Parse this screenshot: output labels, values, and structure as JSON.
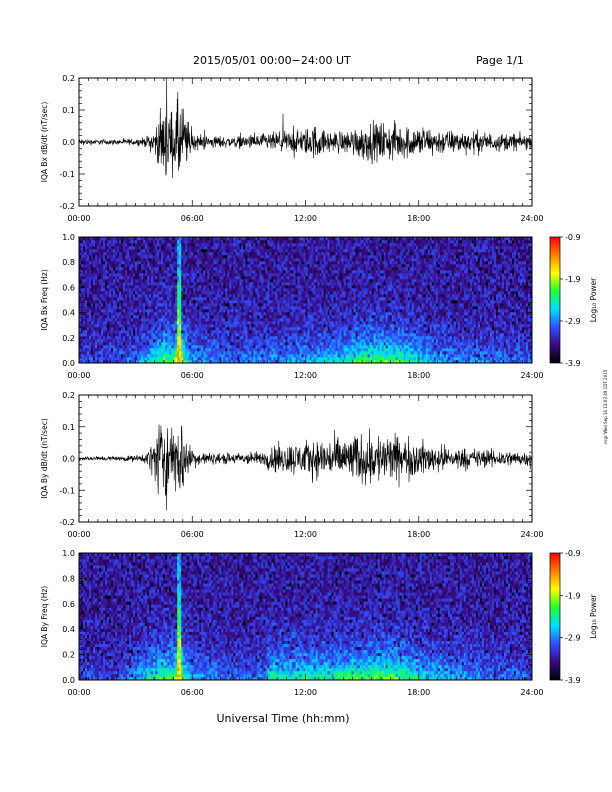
{
  "header": {
    "date_range": "2015/05/01   00:00−24:00 UT",
    "page": "Page 1/1"
  },
  "footer": {
    "xlabel": "Universal Time (hh:mm)",
    "stamp": "ncgr Wed Sep 16 13:03:49 CDT 2015"
  },
  "colorbar": {
    "label": "Log₁₀ Power",
    "ticks": [
      "-0.9",
      "-1.9",
      "-2.9",
      "-3.9"
    ],
    "range": [
      -3.9,
      -0.9
    ],
    "colors": [
      "#000000",
      "#3a0a80",
      "#3050ff",
      "#00e0ff",
      "#20ff30",
      "#ffff00",
      "#ff8000",
      "#ff0000"
    ]
  },
  "colors": {
    "trace": "#000000",
    "spectrogram_background": "#20105a"
  },
  "chart_data": [
    {
      "type": "line",
      "ylabel": "IQA Bx dB/dt (nT/sec)",
      "xlim": [
        0,
        24
      ],
      "ylim": [
        -0.2,
        0.2
      ],
      "x_ticks": [
        "00:00",
        "06:00",
        "12:00",
        "18:00",
        "24:00"
      ],
      "y_ticks": [
        "-0.2",
        "-0.1",
        "0.0",
        "0.1",
        "0.2"
      ],
      "envelope": {
        "x_hours": [
          0,
          1,
          2,
          3,
          3.5,
          4,
          4.3,
          4.6,
          5,
          5.2,
          5.4,
          5.7,
          6,
          7,
          8,
          9,
          10,
          11,
          12,
          12.5,
          13,
          14,
          15,
          16,
          17,
          18,
          19,
          20,
          21,
          22,
          23,
          24
        ],
        "amplitude": [
          0.015,
          0.012,
          0.012,
          0.015,
          0.02,
          0.06,
          0.12,
          0.18,
          0.13,
          0.2,
          0.2,
          0.12,
          0.04,
          0.03,
          0.025,
          0.03,
          0.04,
          0.05,
          0.06,
          0.08,
          0.05,
          0.05,
          0.08,
          0.09,
          0.08,
          0.07,
          0.06,
          0.05,
          0.05,
          0.04,
          0.04,
          0.03
        ]
      }
    },
    {
      "type": "heatmap",
      "ylabel": "IQA Bx Freq (Hz)",
      "xlim": [
        0,
        24
      ],
      "ylim": [
        0,
        1
      ],
      "x_ticks": [
        "00:00",
        "06:00",
        "12:00",
        "18:00",
        "24:00"
      ],
      "y_ticks": [
        "0.0",
        "0.2",
        "0.4",
        "0.6",
        "0.8",
        "1.0"
      ],
      "activity": {
        "x_hours": [
          0,
          1,
          2,
          3,
          4,
          4.5,
          5,
          5.3,
          5.6,
          6,
          8,
          10,
          12,
          13,
          14,
          15,
          16,
          17,
          18,
          19,
          20,
          22,
          24
        ],
        "level": [
          0.15,
          0.12,
          0.12,
          0.2,
          0.45,
          0.6,
          0.55,
          0.95,
          0.5,
          0.3,
          0.2,
          0.25,
          0.3,
          0.35,
          0.45,
          0.55,
          0.6,
          0.55,
          0.4,
          0.3,
          0.25,
          0.2,
          0.15
        ]
      }
    },
    {
      "type": "line",
      "ylabel": "IQA By dB/dt (nT/sec)",
      "xlim": [
        0,
        24
      ],
      "ylim": [
        -0.2,
        0.2
      ],
      "x_ticks": [
        "00:00",
        "06:00",
        "12:00",
        "18:00",
        "24:00"
      ],
      "y_ticks": [
        "-0.2",
        "-0.1",
        "0.0",
        "0.1",
        "0.2"
      ],
      "envelope": {
        "x_hours": [
          0,
          1,
          2,
          3,
          3.5,
          4,
          4.3,
          4.6,
          5,
          5.2,
          5.4,
          5.7,
          6,
          7,
          8,
          9,
          9.9,
          10,
          11,
          12,
          13,
          14,
          15,
          16,
          17,
          18,
          19,
          20,
          21,
          22,
          23,
          24
        ],
        "amplitude": [
          0.01,
          0.01,
          0.01,
          0.015,
          0.02,
          0.1,
          0.2,
          0.2,
          0.12,
          0.2,
          0.2,
          0.1,
          0.04,
          0.025,
          0.025,
          0.03,
          0.03,
          0.06,
          0.07,
          0.08,
          0.09,
          0.1,
          0.11,
          0.12,
          0.1,
          0.08,
          0.06,
          0.05,
          0.045,
          0.04,
          0.035,
          0.03
        ]
      }
    },
    {
      "type": "heatmap",
      "ylabel": "IQA By Freq (Hz)",
      "xlim": [
        0,
        24
      ],
      "ylim": [
        0,
        1
      ],
      "x_ticks": [
        "00:00",
        "06:00",
        "12:00",
        "18:00",
        "24:00"
      ],
      "y_ticks": [
        "0.0",
        "0.2",
        "0.4",
        "0.6",
        "0.8",
        "1.0"
      ],
      "activity": {
        "x_hours": [
          0,
          1,
          2,
          3,
          4,
          4.5,
          5,
          5.3,
          5.6,
          6,
          8,
          9.9,
          10,
          12,
          13,
          14,
          15,
          16,
          17,
          18,
          19,
          20,
          22,
          24
        ],
        "level": [
          0.15,
          0.12,
          0.12,
          0.25,
          0.5,
          0.6,
          0.55,
          0.95,
          0.5,
          0.3,
          0.2,
          0.2,
          0.45,
          0.5,
          0.5,
          0.55,
          0.6,
          0.65,
          0.6,
          0.45,
          0.35,
          0.3,
          0.2,
          0.15
        ]
      }
    }
  ]
}
